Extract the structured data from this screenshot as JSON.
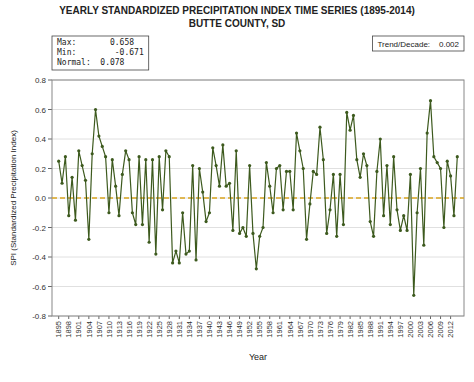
{
  "chart_data": {
    "type": "line",
    "title": "YEARLY STANDARDIZED PRECIPITATION INDEX TIME SERIES (1895-2014)",
    "subtitle": "BUTTE COUNTY, SD",
    "x_label": "Year",
    "y_label": "SPI (Standardized Precipitation Index)",
    "annotations": [
      "Max:       0.658",
      "Min:        -0.671",
      "Normal:  0.078",
      "Trend/Decade:    0.002"
    ],
    "x": [
      1895,
      1896,
      1897,
      1898,
      1899,
      1900,
      1901,
      1902,
      1903,
      1904,
      1905,
      1906,
      1907,
      1908,
      1909,
      1910,
      1911,
      1912,
      1913,
      1914,
      1915,
      1916,
      1917,
      1918,
      1919,
      1920,
      1921,
      1922,
      1923,
      1924,
      1925,
      1926,
      1927,
      1928,
      1929,
      1930,
      1931,
      1932,
      1933,
      1934,
      1935,
      1936,
      1937,
      1938,
      1939,
      1940,
      1941,
      1942,
      1943,
      1944,
      1945,
      1946,
      1947,
      1948,
      1949,
      1950,
      1951,
      1952,
      1953,
      1954,
      1955,
      1956,
      1957,
      1958,
      1959,
      1960,
      1961,
      1962,
      1963,
      1964,
      1965,
      1966,
      1967,
      1968,
      1969,
      1970,
      1971,
      1972,
      1973,
      1974,
      1975,
      1976,
      1977,
      1978,
      1979,
      1980,
      1981,
      1982,
      1983,
      1984,
      1985,
      1986,
      1987,
      1988,
      1989,
      1990,
      1991,
      1992,
      1993,
      1994,
      1995,
      1996,
      1997,
      1998,
      1999,
      2000,
      2001,
      2002,
      2003,
      2004,
      2005,
      2006,
      2007,
      2008,
      2009,
      2010,
      2011,
      2012,
      2013,
      2014
    ],
    "values": [
      0.25,
      0.1,
      0.28,
      -0.12,
      0.14,
      -0.15,
      0.32,
      0.22,
      0.12,
      -0.28,
      0.3,
      0.6,
      0.42,
      0.35,
      0.28,
      -0.1,
      0.26,
      0.08,
      -0.12,
      0.16,
      0.32,
      0.26,
      -0.1,
      -0.18,
      0.28,
      -0.18,
      0.26,
      -0.3,
      0.26,
      -0.38,
      0.28,
      -0.08,
      0.32,
      0.28,
      -0.44,
      -0.36,
      -0.44,
      -0.1,
      -0.38,
      -0.36,
      0.22,
      -0.42,
      0.2,
      0.04,
      -0.16,
      -0.1,
      0.34,
      0.22,
      0.08,
      0.36,
      0.08,
      0.1,
      -0.22,
      0.32,
      -0.24,
      -0.2,
      -0.26,
      0.22,
      -0.24,
      -0.48,
      -0.26,
      -0.2,
      0.24,
      0.08,
      -0.1,
      0.2,
      0.22,
      -0.08,
      0.18,
      0.18,
      -0.08,
      0.44,
      0.32,
      0.2,
      -0.28,
      -0.04,
      0.18,
      0.16,
      0.48,
      0.26,
      -0.24,
      -0.08,
      0.16,
      -0.26,
      0.16,
      -0.18,
      0.58,
      0.46,
      0.56,
      0.26,
      0.14,
      0.3,
      0.22,
      -0.16,
      -0.26,
      0.18,
      0.4,
      -0.12,
      0.22,
      -0.18,
      0.28,
      -0.08,
      -0.22,
      -0.12,
      -0.22,
      0.16,
      -0.66,
      -0.1,
      0.2,
      -0.32,
      0.44,
      0.66,
      0.28,
      0.24,
      0.2,
      -0.2,
      0.25,
      0.15,
      -0.12,
      0.28
    ],
    "color": "#3d5a1e",
    "marker": "circle",
    "hlines": [
      {
        "value": 0,
        "color": "#DAA520",
        "line_style": "dashed"
      }
    ],
    "xlim": [
      1893,
      2016
    ],
    "xticks": [
      1895,
      1898,
      1901,
      1904,
      1907,
      1910,
      1913,
      1916,
      1919,
      1922,
      1925,
      1928,
      1931,
      1934,
      1937,
      1940,
      1943,
      1946,
      1949,
      1952,
      1955,
      1958,
      1961,
      1964,
      1967,
      1970,
      1973,
      1976,
      1979,
      1982,
      1985,
      1988,
      1991,
      1994,
      1997,
      2000,
      2003,
      2006,
      2009,
      2012
    ],
    "ylim": [
      -0.8,
      0.8
    ],
    "yticks": [
      -0.8,
      -0.6,
      -0.4,
      -0.2,
      {
        "value": 0,
        "label": "0.0"
      },
      0.2,
      0.4,
      0.6,
      0.8
    ],
    "grid": true
  }
}
